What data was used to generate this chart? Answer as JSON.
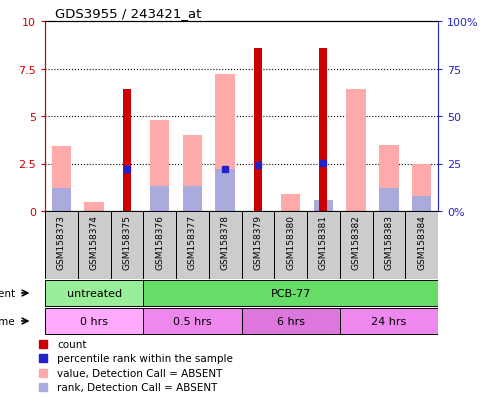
{
  "title": "GDS3955 / 243421_at",
  "samples": [
    "GSM158373",
    "GSM158374",
    "GSM158375",
    "GSM158376",
    "GSM158377",
    "GSM158378",
    "GSM158379",
    "GSM158380",
    "GSM158381",
    "GSM158382",
    "GSM158383",
    "GSM158384"
  ],
  "count_values": [
    0,
    0,
    6.4,
    0,
    0,
    0,
    8.6,
    0,
    8.6,
    0,
    0,
    0
  ],
  "percentile_rank": [
    0,
    0,
    2.2,
    0,
    0,
    2.2,
    2.4,
    0,
    2.55,
    0,
    0,
    0
  ],
  "value_absent": [
    3.4,
    0.5,
    0,
    4.8,
    4.0,
    7.2,
    0,
    0.9,
    0,
    6.4,
    3.5,
    2.5
  ],
  "rank_absent": [
    1.2,
    0,
    0,
    1.3,
    1.3,
    2.2,
    0,
    0,
    0.6,
    0,
    1.2,
    0.8
  ],
  "has_percentile": [
    false,
    false,
    true,
    false,
    false,
    true,
    true,
    false,
    true,
    false,
    false,
    false
  ],
  "ylim_left": [
    0,
    10
  ],
  "ylim_right": [
    0,
    100
  ],
  "yticks_left": [
    0,
    2.5,
    5.0,
    7.5,
    10
  ],
  "yticks_right": [
    0,
    25,
    50,
    75,
    100
  ],
  "ytick_labels_left": [
    "0",
    "2.5",
    "5",
    "7.5",
    "10"
  ],
  "ytick_labels_right": [
    "0%",
    "25",
    "50",
    "75",
    "100%"
  ],
  "agent_groups": [
    {
      "label": "untreated",
      "start": 0,
      "end": 3,
      "color": "#99ee99"
    },
    {
      "label": "PCB-77",
      "start": 3,
      "end": 12,
      "color": "#66dd66"
    }
  ],
  "time_groups": [
    {
      "label": "0 hrs",
      "start": 0,
      "end": 3,
      "color": "#ffaaff"
    },
    {
      "label": "0.5 hrs",
      "start": 3,
      "end": 6,
      "color": "#ee88ee"
    },
    {
      "label": "6 hrs",
      "start": 6,
      "end": 9,
      "color": "#dd77dd"
    },
    {
      "label": "24 hrs",
      "start": 9,
      "end": 12,
      "color": "#ee88ee"
    }
  ],
  "color_count": "#cc0000",
  "color_percentile": "#2222cc",
  "color_value_absent": "#ffaaaa",
  "color_rank_absent": "#aaaadd",
  "grid_color": "black",
  "plot_bg_color": "#ffffff",
  "axis_color_left": "#cc0000",
  "axis_color_right": "#2222cc",
  "sample_box_color": "#cccccc",
  "fig_bg": "#ffffff"
}
